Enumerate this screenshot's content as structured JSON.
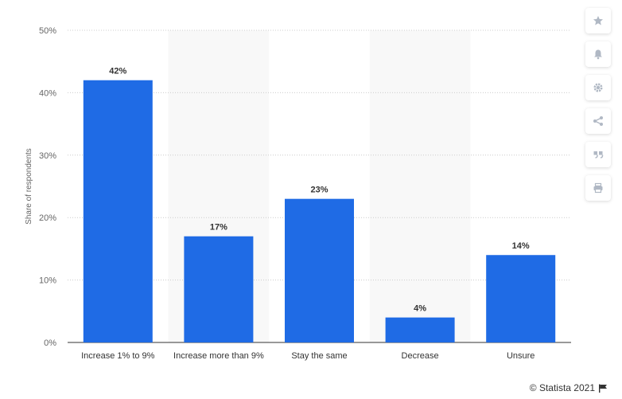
{
  "chart_data": {
    "type": "bar",
    "categories": [
      "Increase 1% to 9%",
      "Increase more than 9%",
      "Stay the same",
      "Decrease",
      "Unsure"
    ],
    "values": [
      42,
      17,
      23,
      4,
      14
    ],
    "value_labels": [
      "42%",
      "17%",
      "23%",
      "4%",
      "14%"
    ],
    "ylabel": "Share of respondents",
    "ylim": [
      0,
      50
    ],
    "yticks": [
      0,
      10,
      20,
      30,
      40,
      50
    ],
    "ytick_labels": [
      "0%",
      "10%",
      "20%",
      "30%",
      "40%",
      "50%"
    ],
    "bar_color": "#1f6be5",
    "grid": true,
    "alternating_band_color": "#f8f8f8"
  },
  "toolbar": {
    "icons": [
      "star-icon",
      "bell-icon",
      "gear-icon",
      "share-icon",
      "quote-icon",
      "print-icon"
    ]
  },
  "credit": {
    "text": "© Statista 2021",
    "icon": "flag-icon"
  }
}
